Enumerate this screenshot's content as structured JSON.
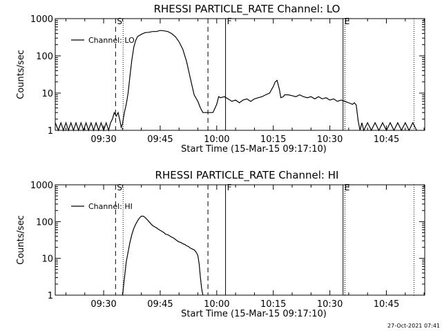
{
  "stamp": "27-Oct-2021 07:41",
  "chart_data": [
    {
      "type": "line",
      "title": "RHESSI PARTICLE_RATE Channel: LO",
      "xlabel": "Start Time (15-Mar-15 09:17:10)",
      "ylabel": "Counts/sec",
      "yscale": "log",
      "ylim": [
        1,
        1000
      ],
      "xlim": [
        "09:17:10",
        "10:55:10"
      ],
      "x_ticks": [
        "09:30",
        "09:45",
        "10:00",
        "10:15",
        "10:30",
        "10:45"
      ],
      "y_ticks": [
        "1",
        "10",
        "100",
        "1000"
      ],
      "legend": {
        "entries": [
          "Channel: LO"
        ],
        "position": "top-left"
      },
      "markers": [
        {
          "label": "S",
          "time": "09:33:10",
          "style": "dashed"
        },
        {
          "label": "",
          "time": "09:35:10",
          "style": "dotted"
        },
        {
          "label": "",
          "time": "09:57:40",
          "style": "dashed"
        },
        {
          "label": "F",
          "time": "10:02:20",
          "style": "solid"
        },
        {
          "label": "E",
          "time": "10:33:30",
          "style": "solid"
        },
        {
          "label": "",
          "time": "10:34:00",
          "style": "dotted"
        },
        {
          "label": "",
          "time": "10:52:20",
          "style": "dotted"
        }
      ],
      "series": [
        {
          "name": "Channel: LO",
          "x": [
            "09:17:10",
            "09:18:00",
            "09:18:40",
            "09:19:20",
            "09:20:00",
            "09:20:40",
            "09:21:20",
            "09:22:00",
            "09:22:40",
            "09:23:20",
            "09:24:00",
            "09:24:40",
            "09:25:20",
            "09:26:00",
            "09:26:40",
            "09:27:20",
            "09:28:00",
            "09:28:40",
            "09:29:20",
            "09:30:00",
            "09:30:40",
            "09:31:20",
            "09:31:50",
            "09:32:20",
            "09:32:50",
            "09:33:20",
            "09:33:50",
            "09:34:20",
            "09:34:40",
            "09:35:00",
            "09:35:30",
            "09:36:00",
            "09:36:30",
            "09:37:00",
            "09:37:30",
            "09:38:00",
            "09:38:30",
            "09:39:00",
            "09:40:00",
            "09:41:00",
            "09:42:00",
            "09:43:00",
            "09:44:00",
            "09:45:00",
            "09:46:00",
            "09:47:00",
            "09:48:00",
            "09:49:00",
            "09:50:00",
            "09:51:00",
            "09:52:00",
            "09:53:00",
            "09:54:00",
            "09:55:00",
            "09:55:40",
            "09:56:20",
            "09:57:00",
            "09:57:30",
            "09:58:00",
            "09:59:00",
            "10:00:00",
            "10:00:30",
            "10:01:00",
            "10:02:00",
            "10:03:00",
            "10:04:00",
            "10:05:00",
            "10:06:00",
            "10:07:00",
            "10:08:00",
            "10:09:00",
            "10:10:00",
            "10:11:00",
            "10:12:00",
            "10:13:00",
            "10:14:00",
            "10:15:00",
            "10:15:30",
            "10:16:00",
            "10:16:40",
            "10:17:00",
            "10:17:40",
            "10:18:00",
            "10:19:00",
            "10:20:00",
            "10:21:00",
            "10:22:00",
            "10:23:00",
            "10:24:00",
            "10:25:00",
            "10:26:00",
            "10:27:00",
            "10:28:00",
            "10:29:00",
            "10:30:00",
            "10:31:00",
            "10:32:00",
            "10:33:00",
            "10:34:00",
            "10:35:00",
            "10:36:00",
            "10:36:30",
            "10:37:00",
            "10:37:30",
            "10:38:00",
            "10:38:30",
            "10:39:00",
            "10:40:00",
            "10:41:00",
            "10:42:00",
            "10:43:00",
            "10:44:00",
            "10:45:00",
            "10:46:00",
            "10:47:00",
            "10:48:00",
            "10:49:00",
            "10:50:00",
            "10:51:00",
            "10:52:00",
            "10:53:00"
          ],
          "y": [
            1.6,
            1,
            1.6,
            1,
            1.6,
            1,
            1.6,
            1,
            1.6,
            1,
            1.6,
            1,
            1.6,
            1,
            1.6,
            1,
            1.6,
            1,
            1.6,
            1,
            1.6,
            1,
            1.6,
            2,
            3,
            2.4,
            3,
            1.8,
            1.2,
            1.5,
            3,
            5,
            10,
            30,
            80,
            170,
            260,
            330,
            380,
            420,
            430,
            450,
            450,
            480,
            470,
            450,
            400,
            330,
            240,
            150,
            70,
            25,
            9,
            6,
            4,
            3,
            3,
            3,
            3,
            3,
            5,
            8,
            7.5,
            8,
            7,
            6,
            6.5,
            5.5,
            6.5,
            7,
            6,
            7,
            7.5,
            8,
            9,
            10,
            15,
            20,
            22,
            12,
            7.5,
            8,
            9,
            9,
            8.5,
            8,
            9,
            8,
            7.5,
            8,
            7,
            8,
            7,
            7.5,
            6.5,
            7,
            6,
            6.5,
            6,
            5.5,
            5,
            5.5,
            4.8,
            1.8,
            1,
            1.6,
            1,
            1.6,
            1,
            1.6,
            1,
            1.6,
            1,
            1.6,
            1,
            1.6,
            1,
            1.6,
            1,
            1.6,
            1
          ]
        }
      ]
    },
    {
      "type": "line",
      "title": "RHESSI PARTICLE_RATE Channel: HI",
      "xlabel": "Start Time (15-Mar-15 09:17:10)",
      "ylabel": "Counts/sec",
      "yscale": "log",
      "ylim": [
        1,
        1000
      ],
      "xlim": [
        "09:17:10",
        "10:55:10"
      ],
      "x_ticks": [
        "09:30",
        "09:45",
        "10:00",
        "10:15",
        "10:30",
        "10:45"
      ],
      "y_ticks": [
        "1",
        "10",
        "100",
        "1000"
      ],
      "legend": {
        "entries": [
          "Channel: HI"
        ],
        "position": "top-left"
      },
      "markers": [
        {
          "label": "S",
          "time": "09:33:10",
          "style": "dashed"
        },
        {
          "label": "",
          "time": "09:35:10",
          "style": "dotted"
        },
        {
          "label": "",
          "time": "09:57:40",
          "style": "dashed"
        },
        {
          "label": "F",
          "time": "10:02:20",
          "style": "solid"
        },
        {
          "label": "E",
          "time": "10:33:30",
          "style": "solid"
        },
        {
          "label": "",
          "time": "10:34:00",
          "style": "dotted"
        },
        {
          "label": "",
          "time": "10:52:20",
          "style": "dotted"
        }
      ],
      "series": [
        {
          "name": "Channel: HI",
          "x": [
            "09:35:00",
            "09:35:20",
            "09:35:40",
            "09:36:00",
            "09:36:30",
            "09:37:00",
            "09:37:30",
            "09:38:00",
            "09:38:30",
            "09:39:00",
            "09:39:30",
            "09:40:00",
            "09:40:30",
            "09:41:00",
            "09:41:30",
            "09:42:00",
            "09:42:30",
            "09:43:00",
            "09:43:30",
            "09:44:00",
            "09:44:30",
            "09:45:00",
            "09:45:30",
            "09:46:00",
            "09:46:30",
            "09:47:00",
            "09:47:30",
            "09:48:00",
            "09:48:30",
            "09:49:00",
            "09:49:30",
            "09:50:00",
            "09:50:30",
            "09:51:00",
            "09:51:30",
            "09:52:00",
            "09:52:30",
            "09:53:00",
            "09:53:30",
            "09:54:00",
            "09:54:30",
            "09:55:00",
            "09:55:20",
            "09:55:40",
            "09:56:00",
            "09:56:20"
          ],
          "y": [
            1,
            2,
            4,
            8,
            15,
            28,
            45,
            65,
            85,
            105,
            125,
            140,
            140,
            130,
            115,
            100,
            88,
            78,
            72,
            68,
            62,
            58,
            54,
            50,
            45,
            44,
            41,
            38,
            36,
            33,
            30,
            28,
            27,
            25,
            24,
            22,
            21,
            19,
            18,
            17,
            15,
            12,
            7,
            3,
            1.5,
            1
          ]
        }
      ]
    }
  ]
}
